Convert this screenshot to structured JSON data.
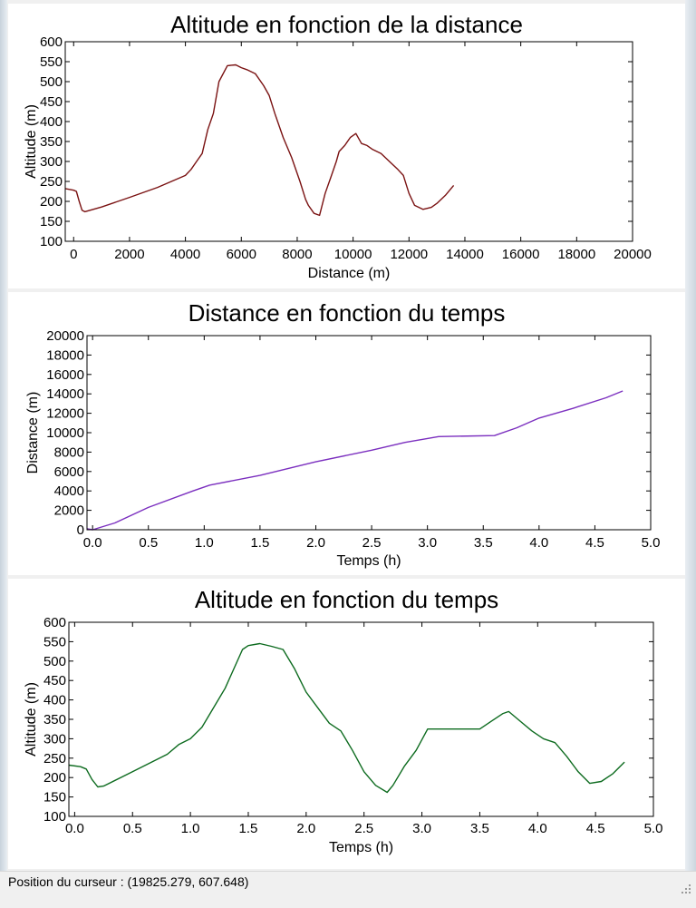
{
  "status_bar": {
    "cursor_position": "Position du curseur : (19825.279, 607.648)"
  },
  "colors": {
    "series1": "#7a1212",
    "series2": "#7b2fbf",
    "series3": "#0d6b1f"
  },
  "chart_data": [
    {
      "type": "line",
      "title": "Altitude en fonction de la distance",
      "xlabel": "Distance (m)",
      "ylabel": "Altitude (m)",
      "xlim": [
        -300,
        20000
      ],
      "ylim": [
        100,
        600
      ],
      "xticks": [
        0,
        2000,
        4000,
        6000,
        8000,
        10000,
        12000,
        14000,
        16000,
        18000,
        20000
      ],
      "yticks": [
        100,
        150,
        200,
        250,
        300,
        350,
        400,
        450,
        500,
        550,
        600
      ],
      "series": [
        {
          "x": [
            -300,
            0,
            100,
            200,
            300,
            400,
            1000,
            2000,
            3000,
            3500,
            4000,
            4200,
            4400,
            4600,
            4800,
            5000,
            5200,
            5500,
            5800,
            6000,
            6200,
            6500,
            6800,
            7000,
            7200,
            7500,
            7800,
            8100,
            8300,
            8400,
            8600,
            8800,
            9000,
            9200,
            9400,
            9500,
            9700,
            9900,
            10100,
            10300,
            10500,
            10700,
            11000,
            11300,
            11600,
            11800,
            12000,
            12200,
            12500,
            12800,
            13000,
            13300,
            13600
          ],
          "y": [
            232,
            228,
            225,
            200,
            178,
            174,
            186,
            210,
            235,
            250,
            265,
            280,
            300,
            320,
            380,
            420,
            500,
            540,
            542,
            535,
            530,
            520,
            490,
            465,
            420,
            360,
            310,
            250,
            205,
            190,
            170,
            165,
            220,
            260,
            300,
            325,
            340,
            360,
            370,
            345,
            340,
            330,
            320,
            300,
            280,
            265,
            220,
            190,
            180,
            185,
            195,
            215,
            240
          ]
        }
      ]
    },
    {
      "type": "line",
      "title": "Distance en fonction du temps",
      "xlabel": "Temps (h)",
      "ylabel": "Distance (m)",
      "xlim": [
        -0.05,
        5.0
      ],
      "ylim": [
        0,
        20000
      ],
      "xticks": [
        0.0,
        0.5,
        1.0,
        1.5,
        2.0,
        2.5,
        3.0,
        3.5,
        4.0,
        4.5,
        5.0
      ],
      "xticklabels": [
        "0.0",
        "0.5",
        "1.0",
        "1.5",
        "2.0",
        "2.5",
        "3.0",
        "3.5",
        "4.0",
        "4.5",
        "5.0"
      ],
      "yticks": [
        0,
        2000,
        4000,
        6000,
        8000,
        10000,
        12000,
        14000,
        16000,
        18000,
        20000
      ],
      "series": [
        {
          "x": [
            -0.05,
            0.0,
            0.2,
            0.5,
            0.9,
            1.05,
            1.5,
            2.0,
            2.5,
            2.8,
            3.1,
            3.6,
            3.8,
            4.0,
            4.3,
            4.6,
            4.75
          ],
          "y": [
            100,
            0,
            700,
            2300,
            4000,
            4600,
            5600,
            7000,
            8200,
            9000,
            9600,
            9700,
            10500,
            11500,
            12500,
            13600,
            14300
          ]
        }
      ]
    },
    {
      "type": "line",
      "title": "Altitude en fonction du temps",
      "xlabel": "Temps (h)",
      "ylabel": "Altitude (m)",
      "xlim": [
        -0.05,
        5.0
      ],
      "ylim": [
        100,
        600
      ],
      "xticks": [
        0.0,
        0.5,
        1.0,
        1.5,
        2.0,
        2.5,
        3.0,
        3.5,
        4.0,
        4.5,
        5.0
      ],
      "xticklabels": [
        "0.0",
        "0.5",
        "1.0",
        "1.5",
        "2.0",
        "2.5",
        "3.0",
        "3.5",
        "4.0",
        "4.5",
        "5.0"
      ],
      "yticks": [
        100,
        150,
        200,
        250,
        300,
        350,
        400,
        450,
        500,
        550,
        600
      ],
      "series": [
        {
          "x": [
            -0.05,
            0.05,
            0.1,
            0.15,
            0.2,
            0.25,
            0.5,
            0.8,
            0.9,
            1.0,
            1.1,
            1.3,
            1.45,
            1.5,
            1.6,
            1.7,
            1.8,
            1.9,
            2.0,
            2.1,
            2.2,
            2.3,
            2.4,
            2.5,
            2.6,
            2.7,
            2.75,
            2.85,
            2.95,
            3.05,
            3.2,
            3.5,
            3.6,
            3.7,
            3.75,
            3.85,
            3.95,
            4.05,
            4.15,
            4.25,
            4.35,
            4.45,
            4.55,
            4.65,
            4.75
          ],
          "y": [
            232,
            228,
            222,
            195,
            176,
            178,
            215,
            260,
            285,
            300,
            330,
            430,
            530,
            540,
            545,
            538,
            530,
            480,
            420,
            380,
            340,
            320,
            270,
            215,
            180,
            162,
            180,
            230,
            270,
            325,
            325,
            325,
            345,
            365,
            370,
            345,
            320,
            300,
            290,
            255,
            215,
            185,
            190,
            210,
            240
          ]
        }
      ]
    }
  ]
}
